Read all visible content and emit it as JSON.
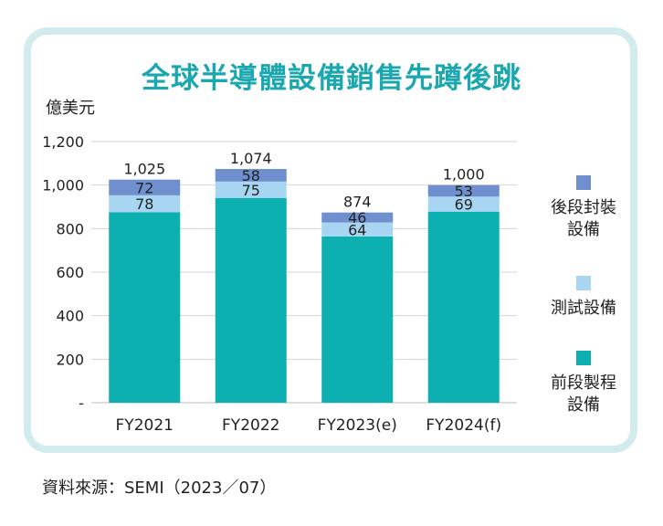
{
  "title": "全球半導體設備銷售先蹲後跳",
  "source": "資料來源：SEMI（2023／07）",
  "chart_data": {
    "type": "bar",
    "stacked": true,
    "ylabel": "億美元",
    "ylim": [
      0,
      1200
    ],
    "yticks": [
      "-",
      "200",
      "400",
      "600",
      "800",
      "1,000",
      "1,200"
    ],
    "grid": true,
    "categories": [
      "FY2021",
      "FY2022",
      "FY2023(e)",
      "FY2024(f)"
    ],
    "totals": [
      1025,
      1074,
      874,
      1000
    ],
    "total_labels": [
      "1,025",
      "1,074",
      "874",
      "1,000"
    ],
    "series": [
      {
        "name": "前段製程\n設備",
        "color": "#0db0b0",
        "values": [
          875,
          941,
          764,
          878
        ],
        "labels": [
          "",
          "",
          "",
          ""
        ]
      },
      {
        "name": "測試設備",
        "color": "#a8d6f2",
        "values": [
          78,
          75,
          64,
          69
        ],
        "labels": [
          "78",
          "75",
          "64",
          "69"
        ]
      },
      {
        "name": "後段封裝\n設備",
        "color": "#6f8fcf",
        "values": [
          72,
          58,
          46,
          53
        ],
        "labels": [
          "72",
          "58",
          "46",
          "53"
        ]
      }
    ],
    "legend_position": "right"
  }
}
